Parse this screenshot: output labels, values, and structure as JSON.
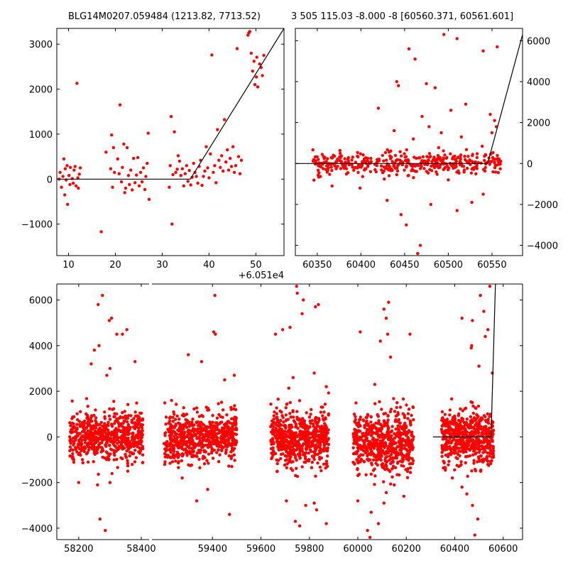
{
  "titles": {
    "left": "BLG14M0207.059484 (1213.82, 7713.52)",
    "right": "3 505 115.03 -8.000 -8 [60560.371, 60561.601]"
  },
  "chart_data": [
    {
      "type": "scatter",
      "panel": "top-left",
      "title": "BLG14M0207.059484 (1213.82, 7713.52)",
      "xlabel": "",
      "ylabel": "",
      "x_offset_label": "+6.051e4",
      "xlim": [
        7.5,
        56
      ],
      "ylim": [
        -1700,
        3350
      ],
      "xticks": [
        10,
        20,
        30,
        40,
        50
      ],
      "yticks": [
        -1000,
        0,
        1000,
        2000,
        3000
      ],
      "ytick_labels": [
        "−1000",
        "0",
        "1000",
        "2000",
        "3000"
      ],
      "grid": false,
      "marker_color": "#ff0000",
      "model_color": "#000000",
      "model_line": {
        "x": [
          7.5,
          36,
          56
        ],
        "y": [
          0,
          0,
          3350
        ]
      },
      "points": [
        [
          8.0,
          0
        ],
        [
          8.2,
          150
        ],
        [
          8.5,
          -180
        ],
        [
          8.8,
          60
        ],
        [
          9.0,
          450
        ],
        [
          9.2,
          -350
        ],
        [
          9.3,
          230
        ],
        [
          9.5,
          -20
        ],
        [
          9.7,
          300
        ],
        [
          9.8,
          -560
        ],
        [
          10.1,
          80
        ],
        [
          10.3,
          -120
        ],
        [
          10.4,
          260
        ],
        [
          10.8,
          10
        ],
        [
          11.0,
          -90
        ],
        [
          11.2,
          200
        ],
        [
          11.4,
          280
        ],
        [
          11.6,
          -150
        ],
        [
          11.8,
          2130
        ],
        [
          12.0,
          30
        ],
        [
          12.1,
          -200
        ],
        [
          12.3,
          110
        ],
        [
          12.5,
          250
        ],
        [
          17.0,
          -1170
        ],
        [
          18.0,
          600
        ],
        [
          19.0,
          230
        ],
        [
          19.2,
          980
        ],
        [
          19.4,
          -180
        ],
        [
          19.6,
          700
        ],
        [
          19.8,
          150
        ],
        [
          20.5,
          450
        ],
        [
          20.8,
          120
        ],
        [
          21.0,
          1650
        ],
        [
          21.3,
          -60
        ],
        [
          21.5,
          260
        ],
        [
          21.8,
          780
        ],
        [
          22.0,
          -300
        ],
        [
          22.2,
          -200
        ],
        [
          22.5,
          700
        ],
        [
          22.8,
          80
        ],
        [
          23.0,
          -120
        ],
        [
          23.3,
          200
        ],
        [
          23.6,
          -240
        ],
        [
          23.9,
          460
        ],
        [
          24.2,
          -80
        ],
        [
          24.5,
          90
        ],
        [
          24.8,
          480
        ],
        [
          25.1,
          -150
        ],
        [
          25.4,
          150
        ],
        [
          25.7,
          -60
        ],
        [
          26.0,
          250
        ],
        [
          26.3,
          -230
        ],
        [
          26.5,
          60
        ],
        [
          26.8,
          350
        ],
        [
          27.0,
          1020
        ],
        [
          27.2,
          -450
        ],
        [
          31.5,
          -180
        ],
        [
          31.7,
          300
        ],
        [
          31.9,
          1390
        ],
        [
          32.1,
          -1000
        ],
        [
          32.3,
          100
        ],
        [
          32.6,
          1050
        ],
        [
          32.9,
          150
        ],
        [
          33.2,
          220
        ],
        [
          33.4,
          520
        ],
        [
          33.7,
          400
        ],
        [
          34.0,
          80
        ],
        [
          34.3,
          230
        ],
        [
          34.6,
          -150
        ],
        [
          34.9,
          120
        ],
        [
          35.2,
          300
        ],
        [
          35.5,
          -50
        ],
        [
          35.8,
          190
        ],
        [
          36.1,
          -130
        ],
        [
          36.4,
          40
        ],
        [
          36.7,
          350
        ],
        [
          37.0,
          150
        ],
        [
          37.3,
          60
        ],
        [
          37.6,
          -90
        ],
        [
          37.9,
          280
        ],
        [
          38.2,
          420
        ],
        [
          38.5,
          -140
        ],
        [
          38.8,
          60
        ],
        [
          39.1,
          180
        ],
        [
          39.4,
          720
        ],
        [
          39.7,
          250
        ],
        [
          40.0,
          30
        ],
        [
          40.3,
          560
        ],
        [
          40.6,
          2760
        ],
        [
          40.9,
          150
        ],
        [
          41.2,
          300
        ],
        [
          41.5,
          -80
        ],
        [
          41.8,
          1100
        ],
        [
          42.1,
          420
        ],
        [
          42.4,
          260
        ],
        [
          42.7,
          520
        ],
        [
          43.0,
          180
        ],
        [
          43.3,
          1320
        ],
        [
          43.6,
          380
        ],
        [
          43.9,
          650
        ],
        [
          44.2,
          200
        ],
        [
          44.5,
          460
        ],
        [
          44.8,
          280
        ],
        [
          45.1,
          720
        ],
        [
          45.4,
          150
        ],
        [
          45.7,
          300
        ],
        [
          46.0,
          2900
        ],
        [
          46.3,
          500
        ],
        [
          46.6,
          120
        ],
        [
          46.9,
          420
        ],
        [
          48.3,
          3200
        ],
        [
          48.5,
          3250
        ],
        [
          48.7,
          3280
        ],
        [
          49.0,
          2800
        ],
        [
          49.3,
          2400
        ],
        [
          49.6,
          2620
        ],
        [
          49.8,
          2100
        ],
        [
          50.1,
          2270
        ],
        [
          50.4,
          2050
        ],
        [
          50.8,
          2560
        ],
        [
          51.1,
          2480
        ],
        [
          51.4,
          2300
        ],
        [
          51.7,
          2750
        ],
        [
          50.2,
          2710
        ]
      ]
    },
    {
      "type": "scatter",
      "panel": "top-right",
      "title": "3 505 115.03 -8.000 -8 [60560.371, 60561.601]",
      "xlabel": "",
      "ylabel": "",
      "xlim": [
        60325,
        60585
      ],
      "ylim": [
        -4500,
        6600
      ],
      "xticks": [
        60350,
        60400,
        60450,
        60500,
        60550
      ],
      "yticks": [
        -4000,
        -2000,
        0,
        2000,
        4000,
        6000
      ],
      "ytick_labels": [
        "−4000",
        "−2000",
        "0",
        "2000",
        "4000",
        "6000"
      ],
      "y_axis_side": "right",
      "grid": false,
      "marker_color": "#ff0000",
      "model_color": "#000000",
      "model_line": {
        "x": [
          60325,
          60545,
          60585
        ],
        "y": [
          0,
          0,
          6300
        ]
      },
      "clusters": [
        {
          "x_range": [
            60345,
            60560
          ],
          "y_center": 0,
          "y_spread": 280,
          "count": 420,
          "seed": 11
        }
      ],
      "points": [
        [
          60455,
          5600
        ],
        [
          60462,
          5100
        ],
        [
          60441,
          4000
        ],
        [
          60443,
          3800
        ],
        [
          60475,
          3900
        ],
        [
          60485,
          3700
        ],
        [
          60495,
          6300
        ],
        [
          60510,
          6100
        ],
        [
          60540,
          5500
        ],
        [
          60556,
          5700
        ],
        [
          60420,
          2700
        ],
        [
          60470,
          2300
        ],
        [
          60478,
          1800
        ],
        [
          60503,
          2600
        ],
        [
          60520,
          2900
        ],
        [
          60548,
          2400
        ],
        [
          60553,
          2100
        ],
        [
          60555,
          1800
        ],
        [
          60550,
          1500
        ],
        [
          60438,
          1600
        ],
        [
          60430,
          -1800
        ],
        [
          60446,
          -2500
        ],
        [
          60452,
          -3000
        ],
        [
          60465,
          -4400
        ],
        [
          60468,
          -4000
        ],
        [
          60510,
          -2300
        ],
        [
          60527,
          -1900
        ],
        [
          60480,
          -2000
        ],
        [
          60399,
          -1200
        ],
        [
          60367,
          -1100
        ],
        [
          60500,
          -800
        ],
        [
          60540,
          -1500
        ],
        [
          60460,
          1200
        ],
        [
          60492,
          1500
        ],
        [
          60515,
          1300
        ]
      ]
    },
    {
      "type": "scatter",
      "panel": "bottom",
      "title": "",
      "xlabel": "",
      "ylabel": "",
      "broken_x_axis": true,
      "segments": [
        {
          "xlim": [
            58130,
            58425
          ],
          "xticks": [
            58200,
            58400
          ]
        },
        {
          "xlim": [
            59150,
            60680
          ],
          "xticks": [
            59400,
            59600,
            59800,
            60000,
            60200,
            60400,
            60600
          ]
        }
      ],
      "ylim": [
        -4500,
        6700
      ],
      "yticks": [
        -4000,
        -2000,
        0,
        2000,
        4000,
        6000
      ],
      "ytick_labels": [
        "−4000",
        "−2000",
        "0",
        "2000",
        "4000",
        "6000"
      ],
      "grid": false,
      "marker_color": "#ff0000",
      "model_color": "#000000",
      "model_line": {
        "x": [
          60310,
          60550,
          60568
        ],
        "y": [
          0,
          0,
          6700
        ]
      },
      "clusters": [
        {
          "x_range": [
            58170,
            58405
          ],
          "y_center": 0,
          "y_spread": 550,
          "count": 650,
          "seed": 3
        },
        {
          "x_range": [
            59200,
            59500
          ],
          "y_center": 0,
          "y_spread": 550,
          "count": 650,
          "seed": 5
        },
        {
          "x_range": [
            59640,
            59880
          ],
          "y_center": -100,
          "y_spread": 600,
          "count": 620,
          "seed": 7
        },
        {
          "x_range": [
            59980,
            60230
          ],
          "y_center": -200,
          "y_spread": 650,
          "count": 620,
          "seed": 9
        },
        {
          "x_range": [
            60345,
            60560
          ],
          "y_center": 0,
          "y_spread": 600,
          "count": 560,
          "seed": 13
        }
      ],
      "points": [
        [
          58276,
          6200
        ],
        [
          58262,
          5800
        ],
        [
          58305,
          5200
        ],
        [
          58298,
          5100
        ],
        [
          58265,
          4000
        ],
        [
          58322,
          4500
        ],
        [
          58354,
          4700
        ],
        [
          58340,
          4500
        ],
        [
          58250,
          3800
        ],
        [
          58380,
          3300
        ],
        [
          58240,
          3200
        ],
        [
          58300,
          3000
        ],
        [
          58290,
          2700
        ],
        [
          58268,
          -3600
        ],
        [
          58285,
          -4100
        ],
        [
          58200,
          -2000
        ],
        [
          58260,
          -2100
        ],
        [
          58300,
          -2000
        ],
        [
          58357,
          -1500
        ],
        [
          59410,
          6200
        ],
        [
          59300,
          3600
        ],
        [
          59355,
          3300
        ],
        [
          59405,
          4600
        ],
        [
          59412,
          4500
        ],
        [
          59490,
          2700
        ],
        [
          59450,
          2500
        ],
        [
          59335,
          -2800
        ],
        [
          59470,
          -3400
        ],
        [
          59380,
          -2300
        ],
        [
          59275,
          -1800
        ],
        [
          59747,
          6600
        ],
        [
          59750,
          6300
        ],
        [
          59770,
          5400
        ],
        [
          59775,
          6000
        ],
        [
          59825,
          5700
        ],
        [
          59837,
          5800
        ],
        [
          59720,
          4800
        ],
        [
          59660,
          4500
        ],
        [
          59690,
          4700
        ],
        [
          59733,
          2600
        ],
        [
          59820,
          2800
        ],
        [
          59870,
          2200
        ],
        [
          59742,
          -3700
        ],
        [
          59760,
          -3900
        ],
        [
          59785,
          -3000
        ],
        [
          59820,
          -2900
        ],
        [
          59705,
          -2800
        ],
        [
          59870,
          -3800
        ],
        [
          59830,
          -3200
        ],
        [
          60010,
          4600
        ],
        [
          60093,
          4200
        ],
        [
          60117,
          5200
        ],
        [
          60127,
          5900
        ],
        [
          60108,
          5600
        ],
        [
          60123,
          4500
        ],
        [
          60215,
          4500
        ],
        [
          60135,
          3500
        ],
        [
          60070,
          2300
        ],
        [
          60040,
          -4100
        ],
        [
          60050,
          -4400
        ],
        [
          60055,
          -3300
        ],
        [
          60085,
          -3800
        ],
        [
          60108,
          -2900
        ],
        [
          60190,
          -2600
        ],
        [
          60150,
          -2100
        ],
        [
          60000,
          -2800
        ],
        [
          60473,
          5100
        ],
        [
          60430,
          5200
        ],
        [
          60470,
          4000
        ],
        [
          60468,
          3900
        ],
        [
          60506,
          6200
        ],
        [
          60520,
          5500
        ],
        [
          60537,
          4700
        ],
        [
          60545,
          6600
        ],
        [
          60526,
          4400
        ],
        [
          60555,
          2800
        ],
        [
          60500,
          3100
        ],
        [
          60450,
          -2500
        ],
        [
          60473,
          -3000
        ],
        [
          60483,
          -4300
        ],
        [
          60495,
          -3600
        ],
        [
          60430,
          -2200
        ],
        [
          60390,
          -1800
        ]
      ]
    }
  ]
}
